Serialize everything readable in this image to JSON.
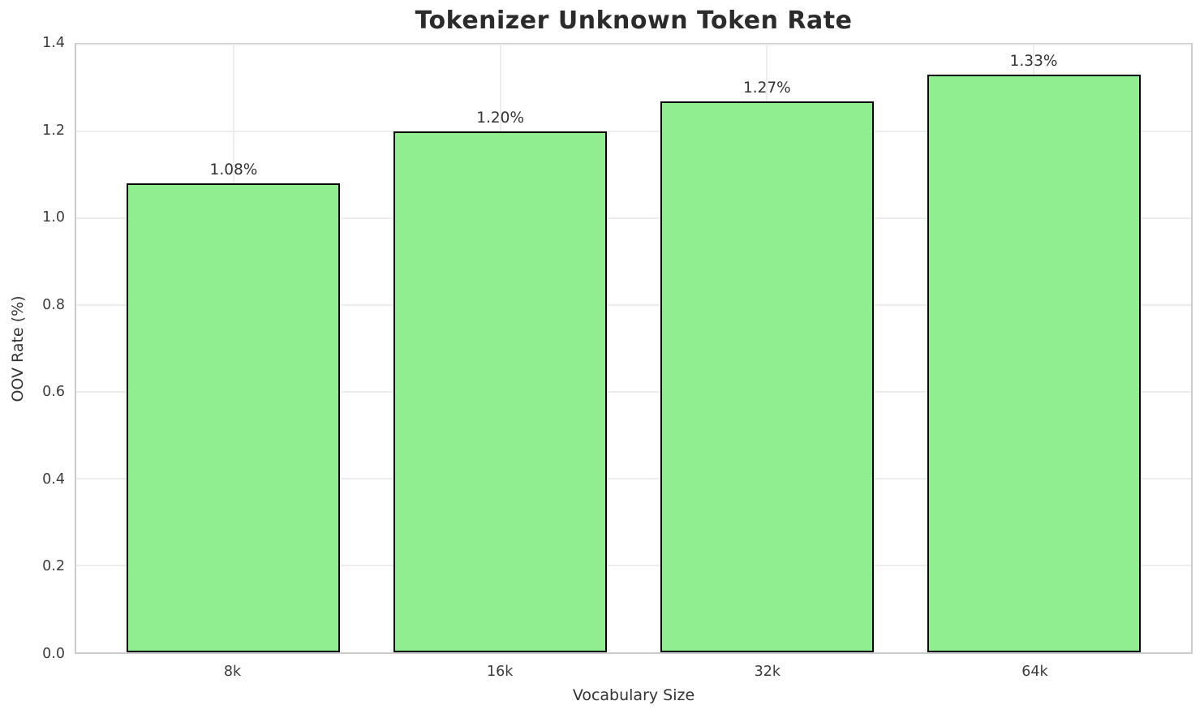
{
  "chart_data": {
    "type": "bar",
    "title": "Tokenizer Unknown Token Rate",
    "xlabel": "Vocabulary Size",
    "ylabel": "OOV Rate (%)",
    "categories": [
      "8k",
      "16k",
      "32k",
      "64k"
    ],
    "values": [
      1.08,
      1.2,
      1.27,
      1.33
    ],
    "value_labels": [
      "1.08%",
      "1.20%",
      "1.27%",
      "1.33%"
    ],
    "ylim": [
      0.0,
      1.4
    ],
    "ytick_values": [
      0.0,
      0.2,
      0.4,
      0.6,
      0.8,
      1.0,
      1.2,
      1.4
    ],
    "ytick_labels": [
      "0.0",
      "0.2",
      "0.4",
      "0.6",
      "0.8",
      "1.0",
      "1.2",
      "1.4"
    ],
    "grid": "both",
    "legend": "none",
    "bar_color": "#90EE90",
    "bar_edge_color": "#000000",
    "gridline_color": "#ededed",
    "spine_color": "#cccccc",
    "title_color": "#2b2b2b",
    "text_color": "#333333"
  }
}
